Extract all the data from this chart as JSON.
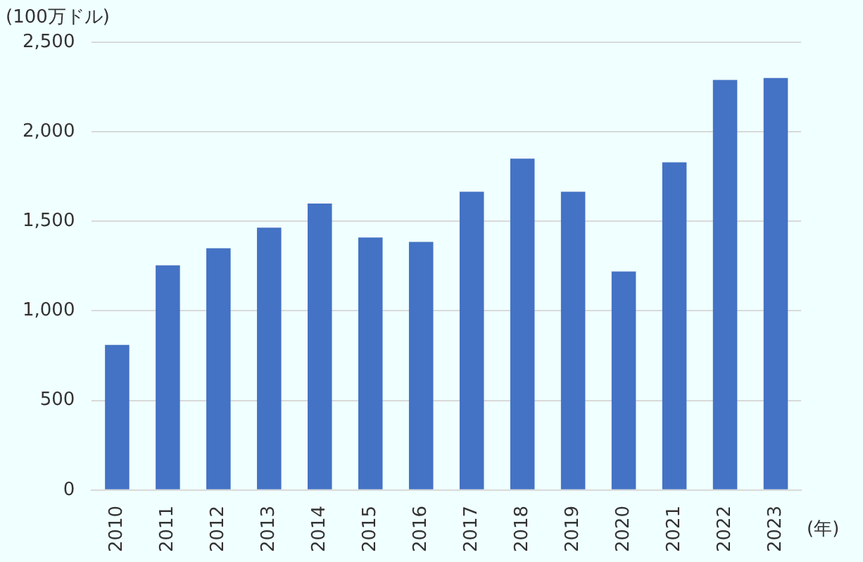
{
  "chart_data": {
    "type": "bar",
    "ylabel": "(100万ドル)",
    "xlabel": "(年)",
    "categories": [
      "2010",
      "2011",
      "2012",
      "2013",
      "2014",
      "2015",
      "2016",
      "2017",
      "2018",
      "2019",
      "2020",
      "2021",
      "2022",
      "2023"
    ],
    "values": [
      810,
      1255,
      1350,
      1465,
      1600,
      1410,
      1385,
      1665,
      1850,
      1665,
      1220,
      1830,
      2290,
      2300
    ],
    "color": "#4472c4",
    "ylim": [
      0,
      2500
    ],
    "yticks": [
      0,
      500,
      {
        "value": 1000,
        "label": "1,000"
      },
      {
        "value": 1500,
        "label": "1,500"
      },
      {
        "value": 2000,
        "label": "2,000"
      },
      {
        "value": 2500,
        "label": "2,500"
      }
    ],
    "grid": "y",
    "legend": false
  }
}
